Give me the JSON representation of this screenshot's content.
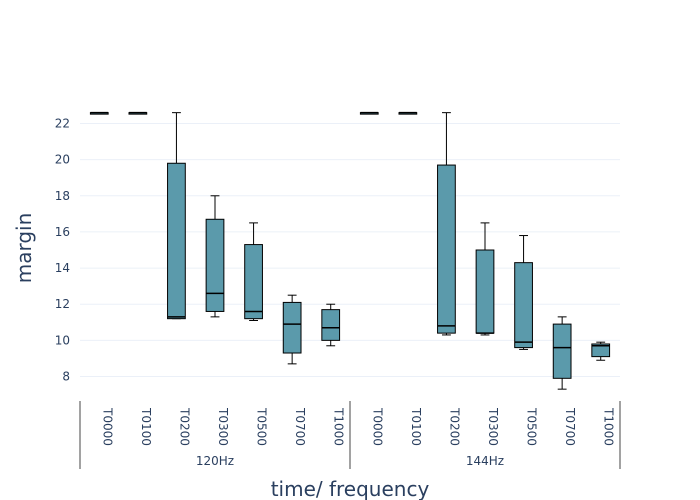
{
  "chart_data": {
    "type": "box",
    "xlabel": "time/ frequency",
    "ylabel": "margin",
    "ylim": [
      6.7,
      23.3
    ],
    "yticks": [
      8,
      10,
      12,
      14,
      16,
      18,
      20,
      22
    ],
    "grid": true,
    "box_color": "#5b9aab",
    "groups": [
      {
        "label": "120Hz",
        "categories": [
          "T0000",
          "T0100",
          "T0200",
          "T0300",
          "T0500",
          "T0700",
          "T1000"
        ],
        "boxes": [
          {
            "min": 22.6,
            "q1": 22.6,
            "median": 22.6,
            "q3": 22.6,
            "max": 22.6
          },
          {
            "min": 22.6,
            "q1": 22.6,
            "median": 22.6,
            "q3": 22.6,
            "max": 22.6
          },
          {
            "min": 11.2,
            "q1": 11.2,
            "median": 11.3,
            "q3": 19.8,
            "max": 22.6
          },
          {
            "min": 11.3,
            "q1": 11.6,
            "median": 12.6,
            "q3": 16.7,
            "max": 18.0
          },
          {
            "min": 11.1,
            "q1": 11.2,
            "median": 11.6,
            "q3": 15.3,
            "max": 16.5
          },
          {
            "min": 8.7,
            "q1": 9.3,
            "median": 10.9,
            "q3": 12.1,
            "max": 12.5
          },
          {
            "min": 9.7,
            "q1": 10.0,
            "median": 10.7,
            "q3": 11.7,
            "max": 12.0
          }
        ]
      },
      {
        "label": "144Hz",
        "categories": [
          "T0000",
          "T0100",
          "T0200",
          "T0300",
          "T0500",
          "T0700",
          "T1000"
        ],
        "boxes": [
          {
            "min": 22.6,
            "q1": 22.6,
            "median": 22.6,
            "q3": 22.6,
            "max": 22.6
          },
          {
            "min": 22.6,
            "q1": 22.6,
            "median": 22.6,
            "q3": 22.6,
            "max": 22.6
          },
          {
            "min": 10.3,
            "q1": 10.4,
            "median": 10.8,
            "q3": 19.7,
            "max": 22.6
          },
          {
            "min": 10.3,
            "q1": 10.4,
            "median": 10.4,
            "q3": 15.0,
            "max": 16.5
          },
          {
            "min": 9.5,
            "q1": 9.6,
            "median": 9.9,
            "q3": 14.3,
            "max": 15.8
          },
          {
            "min": 7.3,
            "q1": 7.9,
            "median": 9.6,
            "q3": 10.9,
            "max": 11.3
          },
          {
            "min": 8.9,
            "q1": 9.1,
            "median": 9.7,
            "q3": 9.8,
            "max": 9.9
          }
        ]
      }
    ]
  }
}
